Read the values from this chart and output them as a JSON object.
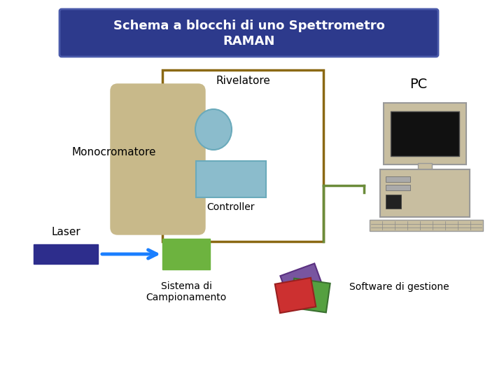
{
  "title_line1": "Schema a blocchi di uno Spettrometro",
  "title_line2": "RAMAN",
  "title_bg": "#2d3a8c",
  "title_fg": "#ffffff",
  "bg_color": "#ffffff",
  "monocromatore_label": "Monocromatore",
  "laser_label": "Laser",
  "rivelatore_label": "Rivelatore",
  "controller_label": "Controller",
  "sistema_label": "Sistema di\nCampionamento",
  "pc_label": "PC",
  "software_label": "Software di gestione",
  "laser_rect_color": "#2d2d8c",
  "arrow_color": "#1a7fff",
  "sample_rect_color": "#6db33f",
  "mono_rect_color": "#c8b98a",
  "detector_circle_color": "#8bbccc",
  "controller_rect_color": "#8bbccc",
  "box_outline_color": "#8b6914",
  "box_outline2_color": "#6b8c3a",
  "pc_body_color": "#c8bea0",
  "pc_screen_color": "#111111",
  "floppy_purple": "#7855a0",
  "floppy_green": "#55a040",
  "floppy_red": "#cc3030"
}
